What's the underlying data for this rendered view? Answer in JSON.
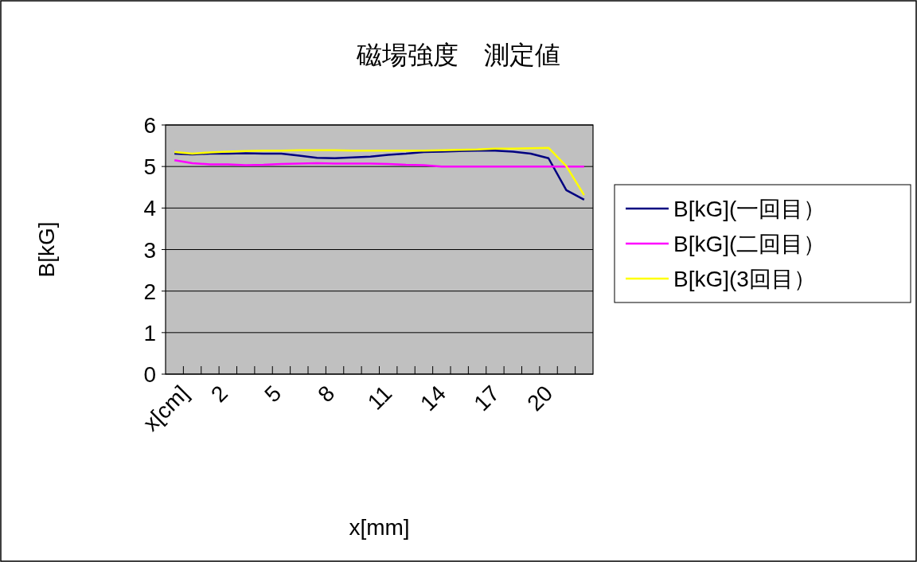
{
  "chart_data": {
    "type": "line",
    "title": "磁場強度　測定値",
    "xlabel": "x[mm]",
    "ylabel": "B[kG]",
    "categories": [
      "x[cm]",
      null,
      null,
      "2",
      null,
      null,
      "5",
      null,
      null,
      "8",
      null,
      null,
      "11",
      null,
      null,
      "14",
      null,
      null,
      "17",
      null,
      null,
      "20",
      null,
      null
    ],
    "series": [
      {
        "name": "B[kG](一回目）",
        "color": "#000080",
        "values": [
          5.31,
          5.29,
          5.31,
          5.31,
          5.32,
          5.31,
          5.31,
          5.26,
          5.21,
          5.2,
          5.22,
          5.24,
          5.28,
          5.31,
          5.35,
          5.36,
          5.37,
          5.38,
          5.38,
          5.36,
          5.31,
          5.2,
          4.43,
          4.2
        ]
      },
      {
        "name": "B[kG](二回目）",
        "color": "#ff00ff",
        "values": [
          5.15,
          5.08,
          5.05,
          5.05,
          5.03,
          5.04,
          5.06,
          5.07,
          5.08,
          5.07,
          5.07,
          5.07,
          5.06,
          5.04,
          5.03,
          5.0,
          5.0,
          5.0,
          5.0,
          5.0,
          5.0,
          5.0,
          5.0,
          5.0
        ]
      },
      {
        "name": "B[kG](3回目）",
        "color": "#ffff00",
        "values": [
          5.35,
          5.31,
          5.34,
          5.36,
          5.37,
          5.38,
          5.38,
          5.39,
          5.39,
          5.39,
          5.38,
          5.38,
          5.38,
          5.38,
          5.38,
          5.39,
          5.4,
          5.41,
          5.43,
          5.43,
          5.44,
          5.45,
          5.01,
          4.31
        ]
      }
    ],
    "ylim": [
      0,
      6
    ],
    "yticks": [
      0,
      1,
      2,
      3,
      4,
      5,
      6
    ],
    "grid": "y",
    "legend": "right"
  }
}
